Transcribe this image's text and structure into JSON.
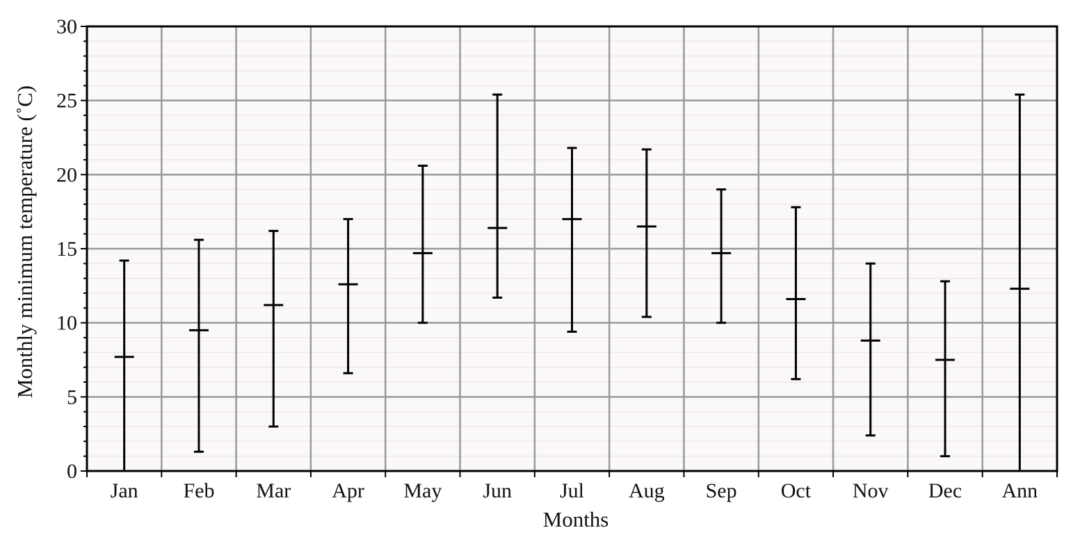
{
  "chart_data": {
    "type": "errorbar",
    "xlabel": "Months",
    "ylabel": "Monthly minimum temperature (˚C)",
    "ylim": [
      0,
      30
    ],
    "yticks": [
      0,
      5,
      10,
      15,
      20,
      25,
      30
    ],
    "grid": true,
    "categories": [
      "Jan",
      "Feb",
      "Mar",
      "Apr",
      "May",
      "Jun",
      "Jul",
      "Aug",
      "Sep",
      "Oct",
      "Nov",
      "Dec",
      "Ann"
    ],
    "series": [
      {
        "mean": [
          7.7,
          9.5,
          11.2,
          12.6,
          14.7,
          16.4,
          17.0,
          16.5,
          14.7,
          11.6,
          8.8,
          7.5,
          12.3
        ],
        "min": [
          0.0,
          1.3,
          3.0,
          6.6,
          10.0,
          11.7,
          9.4,
          10.4,
          10.0,
          6.2,
          2.4,
          1.0,
          0.0
        ],
        "max": [
          14.2,
          15.6,
          16.2,
          17.0,
          20.6,
          25.4,
          21.8,
          21.7,
          19.0,
          17.8,
          14.0,
          12.8,
          25.4
        ]
      }
    ],
    "colors": {
      "bars": "#000000",
      "grid": "#999999",
      "background": "#fbf8f9"
    }
  }
}
